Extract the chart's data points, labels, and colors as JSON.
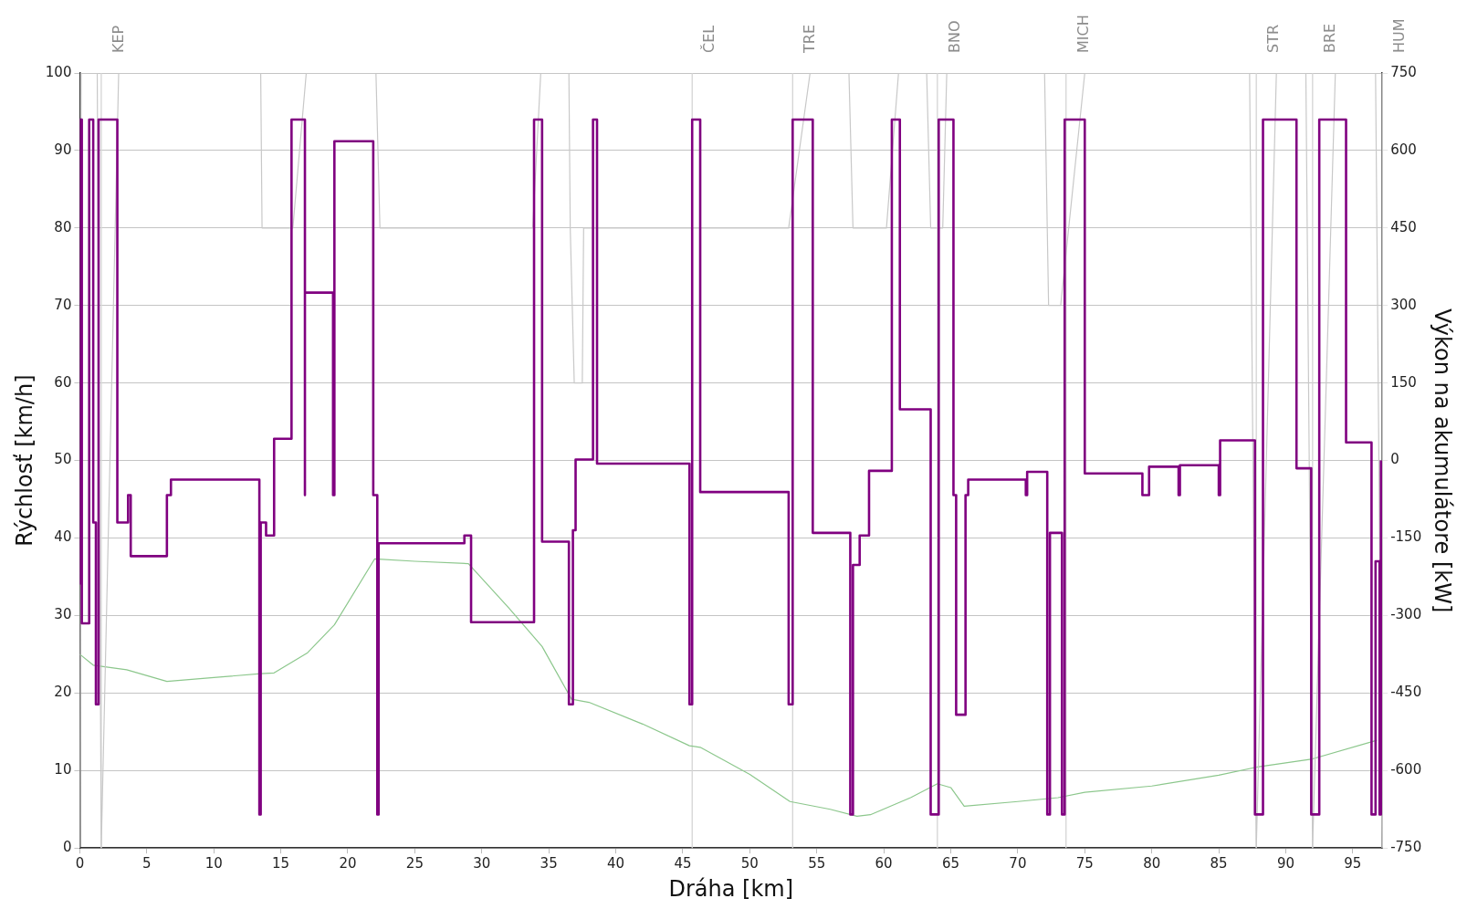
{
  "chart_data": {
    "type": "line",
    "xlabel": "Dráha [km]",
    "ylabel": "Rýchlosť [km/h]",
    "y2label": "Výkon na akumulátore [kW]",
    "xlim": [
      0,
      97.2
    ],
    "xticks": [
      0,
      5,
      10,
      15,
      20,
      25,
      30,
      35,
      40,
      45,
      50,
      55,
      60,
      65,
      70,
      75,
      80,
      85,
      90,
      95
    ],
    "ylim": [
      0,
      100
    ],
    "yticks": [
      0,
      10,
      20,
      30,
      40,
      50,
      60,
      70,
      80,
      90,
      100
    ],
    "y2lim": [
      -750,
      750
    ],
    "y2ticks": [
      -750,
      -600,
      -450,
      -300,
      -150,
      0,
      150,
      300,
      450,
      600,
      750
    ],
    "grid": "y",
    "legend": false,
    "marker": "none",
    "series": [
      {
        "color": "#c8c8c8",
        "x": [
          0,
          0.1,
          1.3,
          1.6,
          2.9,
          13.5,
          13.6,
          15.9,
          16.9,
          22.1,
          22.4,
          33.8,
          34.4,
          36.5,
          36.6,
          36.9,
          37.5,
          37.6,
          52.9,
          54.5,
          57.4,
          57.7,
          60.2,
          61.1,
          63.2,
          63.5,
          64.4,
          64.7,
          72.0,
          72.3,
          73.2,
          75.0,
          87.3,
          87.8,
          89.3,
          91.5,
          92.0,
          93.7,
          96.7,
          97.2
        ],
        "values": [
          0,
          100,
          100,
          0,
          100,
          100,
          80,
          80,
          100,
          100,
          80,
          80,
          100,
          100,
          80,
          60,
          60,
          80,
          80,
          100,
          100,
          80,
          80,
          100,
          100,
          80,
          80,
          100,
          100,
          70,
          70,
          100,
          100,
          0,
          100,
          100,
          0,
          100,
          100,
          0
        ]
      },
      {
        "color": "#8cc78c",
        "x": [
          0,
          1,
          3.5,
          6.5,
          10,
          13.5,
          14.5,
          17,
          19,
          22,
          25,
          29,
          32,
          34.5,
          36.7,
          38,
          42,
          45.5,
          46.3,
          50,
          53,
          56,
          58,
          59,
          62,
          64,
          65,
          66,
          70,
          73,
          75,
          80,
          85,
          88,
          92,
          96.8
        ],
        "values": [
          25,
          23.6,
          23,
          21.5,
          22,
          22.5,
          22.6,
          25.2,
          28.8,
          37.3,
          37,
          36.7,
          31,
          26,
          19.2,
          18.8,
          16,
          13.2,
          13,
          9.5,
          6,
          5,
          4.1,
          4.3,
          6.5,
          8.3,
          7.8,
          5.4,
          6,
          6.5,
          7.2,
          8,
          9.4,
          10.5,
          11.5,
          13.9
        ]
      },
      {
        "color": "#800080",
        "axis": "y2",
        "x": [
          0,
          0,
          0.15,
          0.15,
          0.7,
          0.7,
          1.0,
          1.0,
          1.2,
          1.2,
          1.4,
          1.4,
          2.8,
          2.8,
          3.6,
          3.6,
          3.8,
          3.8,
          6.5,
          6.5,
          6.8,
          6.8,
          13.4,
          13.4,
          13.5,
          13.5,
          13.9,
          13.9,
          14.5,
          14.5,
          15.8,
          15.8,
          16.8,
          16.8,
          16.8,
          18.9,
          18.9,
          19.0,
          19.0,
          21.9,
          21.9,
          22.2,
          22.2,
          22.3,
          22.3,
          28.7,
          28.7,
          29.2,
          29.2,
          33.9,
          33.9,
          34.5,
          34.5,
          36.5,
          36.5,
          36.8,
          36.8,
          37.0,
          37.0,
          38.3,
          38.3,
          38.6,
          38.6,
          45.5,
          45.5,
          45.7,
          45.7,
          46.3,
          46.3,
          52.9,
          52.9,
          53.2,
          53.2,
          54.7,
          54.7,
          57.5,
          57.5,
          57.7,
          57.7,
          58.2,
          58.2,
          58.9,
          58.9,
          60.6,
          60.6,
          61.2,
          61.2,
          63.5,
          63.5,
          64.1,
          64.1,
          65.2,
          65.2,
          65.4,
          65.4,
          66.1,
          66.1,
          66.3,
          66.3,
          70.6,
          70.6,
          70.7,
          70.7,
          72.2,
          72.2,
          72.4,
          72.4,
          73.3,
          73.3,
          73.5,
          73.5,
          75.0,
          75.0,
          79.3,
          79.3,
          79.8,
          79.8,
          82.0,
          82.0,
          82.1,
          82.1,
          85.0,
          85.0,
          85.1,
          85.1,
          87.7,
          87.7,
          88.3,
          88.3,
          90.8,
          90.8,
          91.9,
          91.9,
          92.5,
          92.5,
          94.5,
          94.5,
          96.4,
          96.4,
          96.7,
          96.7,
          97.0,
          97.0,
          97.1,
          97.1
        ],
        "values": [
          -240,
          660,
          660,
          -315,
          -315,
          660,
          660,
          -120,
          -120,
          -472,
          -472,
          660,
          660,
          -120,
          -120,
          -67,
          -67,
          -185,
          -185,
          -67,
          -67,
          -37,
          -37,
          -685,
          -685,
          -120,
          -120,
          -145,
          -145,
          42,
          42,
          660,
          660,
          -67,
          325,
          325,
          -67,
          -67,
          618,
          618,
          -67,
          -67,
          -685,
          -685,
          -160,
          -160,
          -145,
          -145,
          -313,
          -313,
          660,
          660,
          -157,
          -157,
          -472,
          -472,
          -135,
          -135,
          2,
          2,
          660,
          660,
          -6,
          -6,
          -472,
          -472,
          660,
          660,
          -61,
          -61,
          -472,
          -472,
          660,
          660,
          -140,
          -140,
          -685,
          -685,
          -202,
          -202,
          -145,
          -145,
          -20,
          -20,
          660,
          660,
          99,
          99,
          -685,
          -685,
          660,
          660,
          -67,
          -67,
          -492,
          -492,
          -67,
          -67,
          -37,
          -37,
          -67,
          -67,
          -22,
          -22,
          -685,
          -685,
          -140,
          -140,
          -685,
          -685,
          660,
          660,
          -25,
          -25,
          -67,
          -67,
          -12,
          -12,
          -67,
          -67,
          -9,
          -9,
          -67,
          -67,
          39,
          39,
          -685,
          -685,
          660,
          660,
          -15,
          -15,
          -685,
          -685,
          660,
          660,
          35,
          35,
          -685,
          -685,
          -195,
          -195,
          -685,
          -685,
          0
        ]
      }
    ],
    "ref_lines": [
      {
        "axis": "x",
        "value": 1.6,
        "label": "KEP",
        "color": "#d4d4d4"
      },
      {
        "axis": "x",
        "value": 45.7,
        "label": "ČEL",
        "color": "#d4d4d4"
      },
      {
        "axis": "x",
        "value": 53.2,
        "label": "TRE",
        "color": "#d4d4d4"
      },
      {
        "axis": "x",
        "value": 64.0,
        "label": "BNO",
        "color": "#d4d4d4"
      },
      {
        "axis": "x",
        "value": 73.6,
        "label": "MICH",
        "color": "#d4d4d4"
      },
      {
        "axis": "x",
        "value": 87.8,
        "label": "STR",
        "color": "#d4d4d4"
      },
      {
        "axis": "x",
        "value": 92.0,
        "label": "BRE",
        "color": "#d4d4d4"
      },
      {
        "axis": "x",
        "value": 97.2,
        "label": "HUM",
        "color": "#d4d4d4"
      }
    ]
  }
}
